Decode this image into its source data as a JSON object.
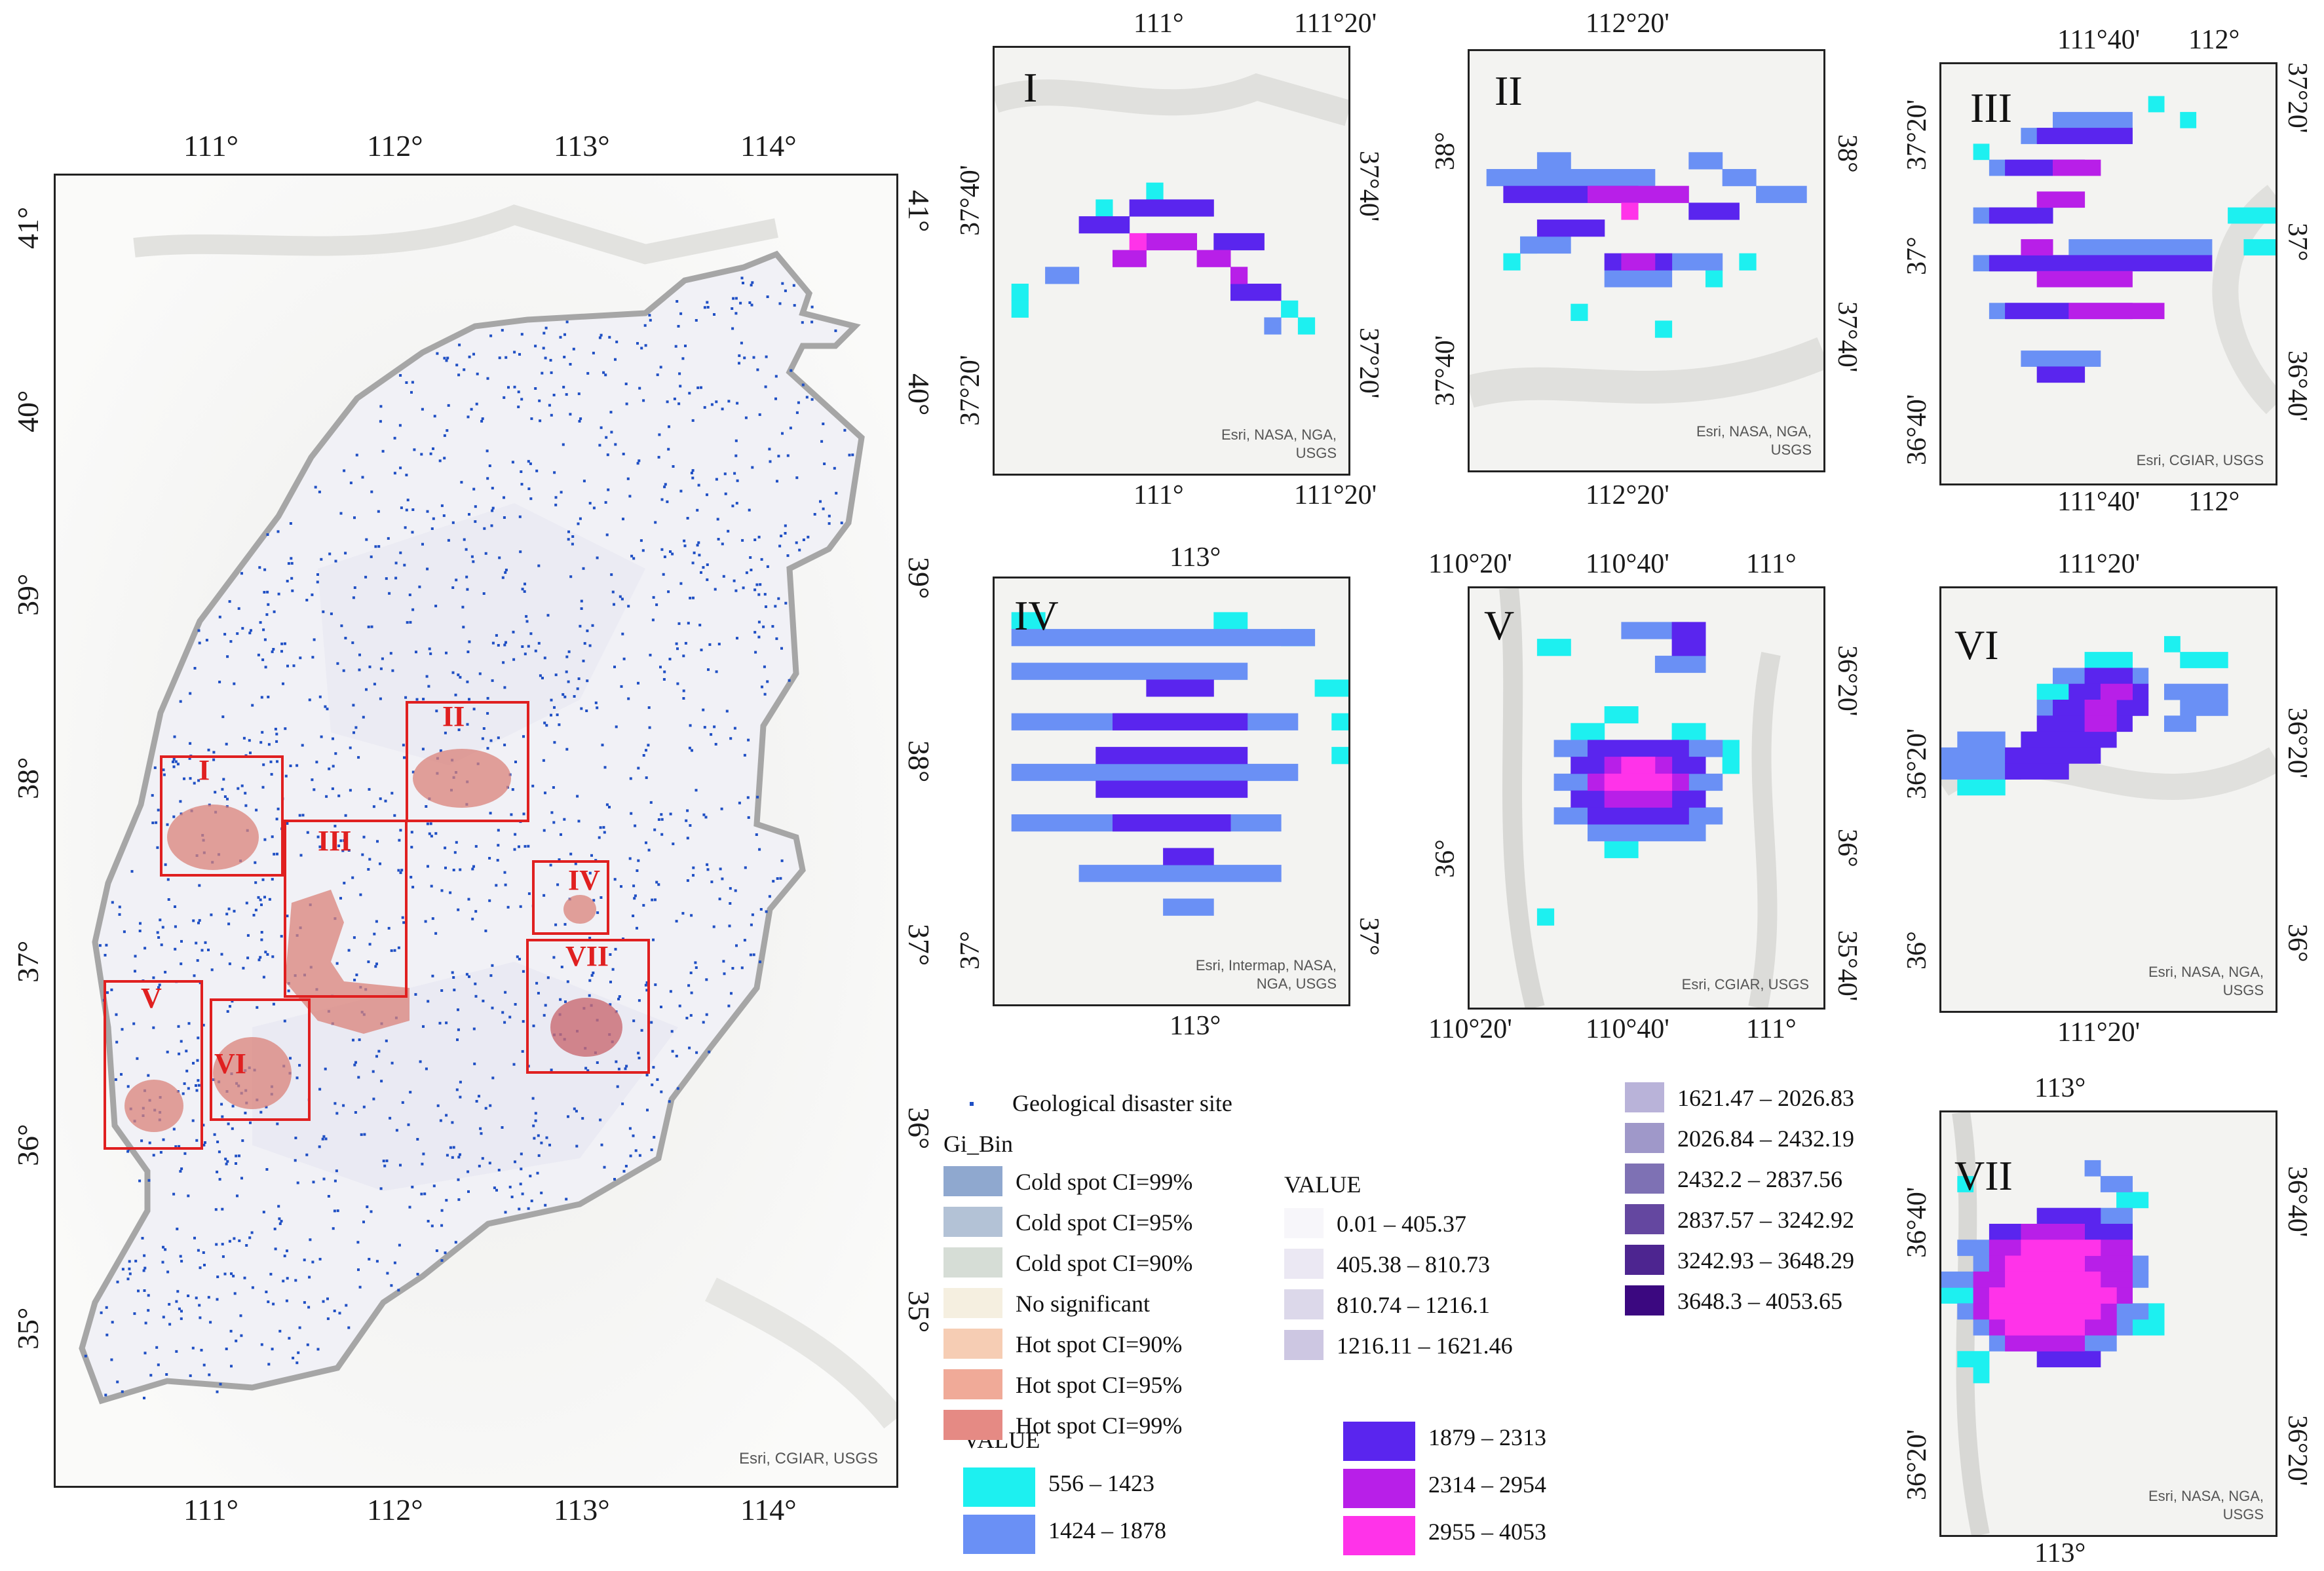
{
  "main_map": {
    "attribution": "Esri, CGIAR, USGS",
    "top_labels": [
      "111°",
      "112°",
      "113°",
      "114°"
    ],
    "bottom_labels": [
      "111°",
      "112°",
      "113°",
      "114°"
    ],
    "left_labels": [
      "41°",
      "40°",
      "39°",
      "38°",
      "37°",
      "36°",
      "35°"
    ],
    "right_labels": [
      "41°",
      "40°",
      "39°",
      "38°",
      "37°",
      "36°",
      "35°"
    ],
    "boxes": [
      "I",
      "II",
      "III",
      "IV",
      "V",
      "VI",
      "VII"
    ],
    "colors": {
      "boundary": "#a6a6a6",
      "sites": "#1f4fc4",
      "box": "#e02020",
      "hotspot": "#d9827a"
    }
  },
  "insets": [
    {
      "id": "I",
      "top": [
        "111°",
        "111°20'"
      ],
      "bottom": [
        "111°",
        "111°20'"
      ],
      "left": [
        "37°40'",
        "37°20'"
      ],
      "right": [
        "37°40'",
        "37°20'"
      ],
      "attribution": [
        "Esri, NASA, NGA,",
        "USGS"
      ]
    },
    {
      "id": "II",
      "top": [
        "112°20'"
      ],
      "bottom": [
        "112°20'"
      ],
      "left": [
        "38°",
        "37°40'"
      ],
      "right": [
        "38°",
        "37°40'"
      ],
      "attribution": [
        "Esri, NASA, NGA,",
        "USGS"
      ]
    },
    {
      "id": "III",
      "top": [
        "111°40'",
        "112°"
      ],
      "bottom": [
        "111°40'",
        "112°"
      ],
      "left": [
        "37°20'",
        "37°",
        "36°40'"
      ],
      "right": [
        "37°20'",
        "37°",
        "36°40'"
      ],
      "attribution": [
        "Esri, CGIAR, USGS"
      ]
    },
    {
      "id": "IV",
      "top": [
        "113°"
      ],
      "bottom": [
        "113°"
      ],
      "left": [
        "37°"
      ],
      "right": [
        "37°"
      ],
      "attribution": [
        "Esri, Intermap, NASA,",
        "NGA, USGS"
      ]
    },
    {
      "id": "V",
      "top": [
        "110°20'",
        "110°40'",
        "111°"
      ],
      "bottom": [
        "110°20'",
        "110°40'",
        "111°"
      ],
      "left": [
        "36°"
      ],
      "right": [
        "36°20'",
        "36°",
        "35°40'"
      ],
      "attribution": [
        "Esri, CGIAR, USGS"
      ]
    },
    {
      "id": "VI",
      "top": [
        "111°20'"
      ],
      "bottom": [
        "111°20'"
      ],
      "left": [
        "36°20'",
        "36°"
      ],
      "right": [
        "36°20'",
        "36°"
      ],
      "attribution": [
        "Esri, NASA, NGA,",
        "USGS"
      ]
    },
    {
      "id": "VII",
      "top": [
        "113°"
      ],
      "bottom": [
        "113°"
      ],
      "left": [
        "36°40'",
        "36°20'"
      ],
      "right": [
        "36°40'",
        "36°20'"
      ],
      "attribution": [
        "Esri, NASA, NGA,",
        "USGS"
      ]
    }
  ],
  "legend": {
    "site_label": "Geological disaster site",
    "gi_title": "Gi_Bin",
    "gi_items": [
      {
        "label": "Cold spot CI=99%",
        "color": "#8fa8cf"
      },
      {
        "label": "Cold spot CI=95%",
        "color": "#b3c2d6"
      },
      {
        "label": "Cold spot CI=90%",
        "color": "#d6ddd6"
      },
      {
        "label": "No significant",
        "color": "#f5efe0"
      },
      {
        "label": "Hot spot CI=90%",
        "color": "#f6cdb4"
      },
      {
        "label": "Hot spot CI=95%",
        "color": "#f0aa98"
      },
      {
        "label": "Hot spot CI=99%",
        "color": "#e58a84"
      }
    ],
    "value_title": "VALUE",
    "value_items": [
      {
        "label": "0.01 – 405.37",
        "color": "#f7f6fa"
      },
      {
        "label": "405.38 – 810.73",
        "color": "#ebe8f3"
      },
      {
        "label": "810.74 – 1216.1",
        "color": "#dcd8ea"
      },
      {
        "label": "1216.11 – 1621.46",
        "color": "#cdc7e2"
      },
      {
        "label": "1621.47 – 2026.83",
        "color": "#b9b3d9"
      },
      {
        "label": "2026.84 – 2432.19",
        "color": "#9f98c9"
      },
      {
        "label": "2432.2 – 2837.56",
        "color": "#7e71b4"
      },
      {
        "label": "2837.57 – 3242.92",
        "color": "#6447a0"
      },
      {
        "label": "3242.93 – 3648.29",
        "color": "#4d2590"
      },
      {
        "label": "3648.3 – 4053.65",
        "color": "#3b0880"
      }
    ],
    "value2_title": "VALUE",
    "value2_items": [
      {
        "label": "556 – 1423",
        "color": "#1df0f0"
      },
      {
        "label": "1424 – 1878",
        "color": "#6a90f5"
      },
      {
        "label": "1879 – 2313",
        "color": "#5a25ee"
      },
      {
        "label": "2314 – 2954",
        "color": "#b81fe8"
      },
      {
        "label": "2955 – 4053",
        "color": "#ff33e9"
      }
    ]
  }
}
